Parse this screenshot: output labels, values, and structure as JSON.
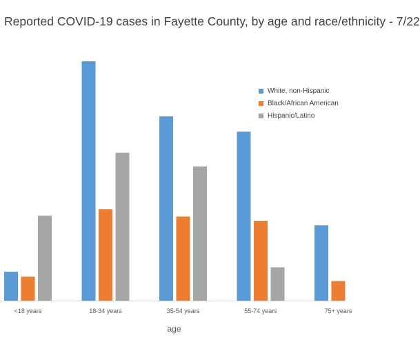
{
  "chart_data": {
    "type": "bar",
    "title": "Reported COVID-19 cases in Fayette County, by age and race/ethnicity - 7/22",
    "xlabel": "age",
    "ylabel": "",
    "categories": [
      "<18 years",
      "18-34 years",
      "35-54 years",
      "55-74 years",
      "75+ years"
    ],
    "series": [
      {
        "name": "White, non-Hispanic",
        "color": "#5B9BD5",
        "values": [
          40,
          330,
          254,
          233,
          104
        ]
      },
      {
        "name": "Black/African American",
        "color": "#ED7D31",
        "values": [
          33,
          126,
          116,
          110,
          27
        ]
      },
      {
        "name": "Hispanic/Latino",
        "color": "#A5A5A5",
        "values": [
          117,
          204,
          185,
          46,
          0
        ]
      }
    ],
    "ylim": [
      0,
      350
    ],
    "grid": false,
    "legend_position": "right"
  }
}
